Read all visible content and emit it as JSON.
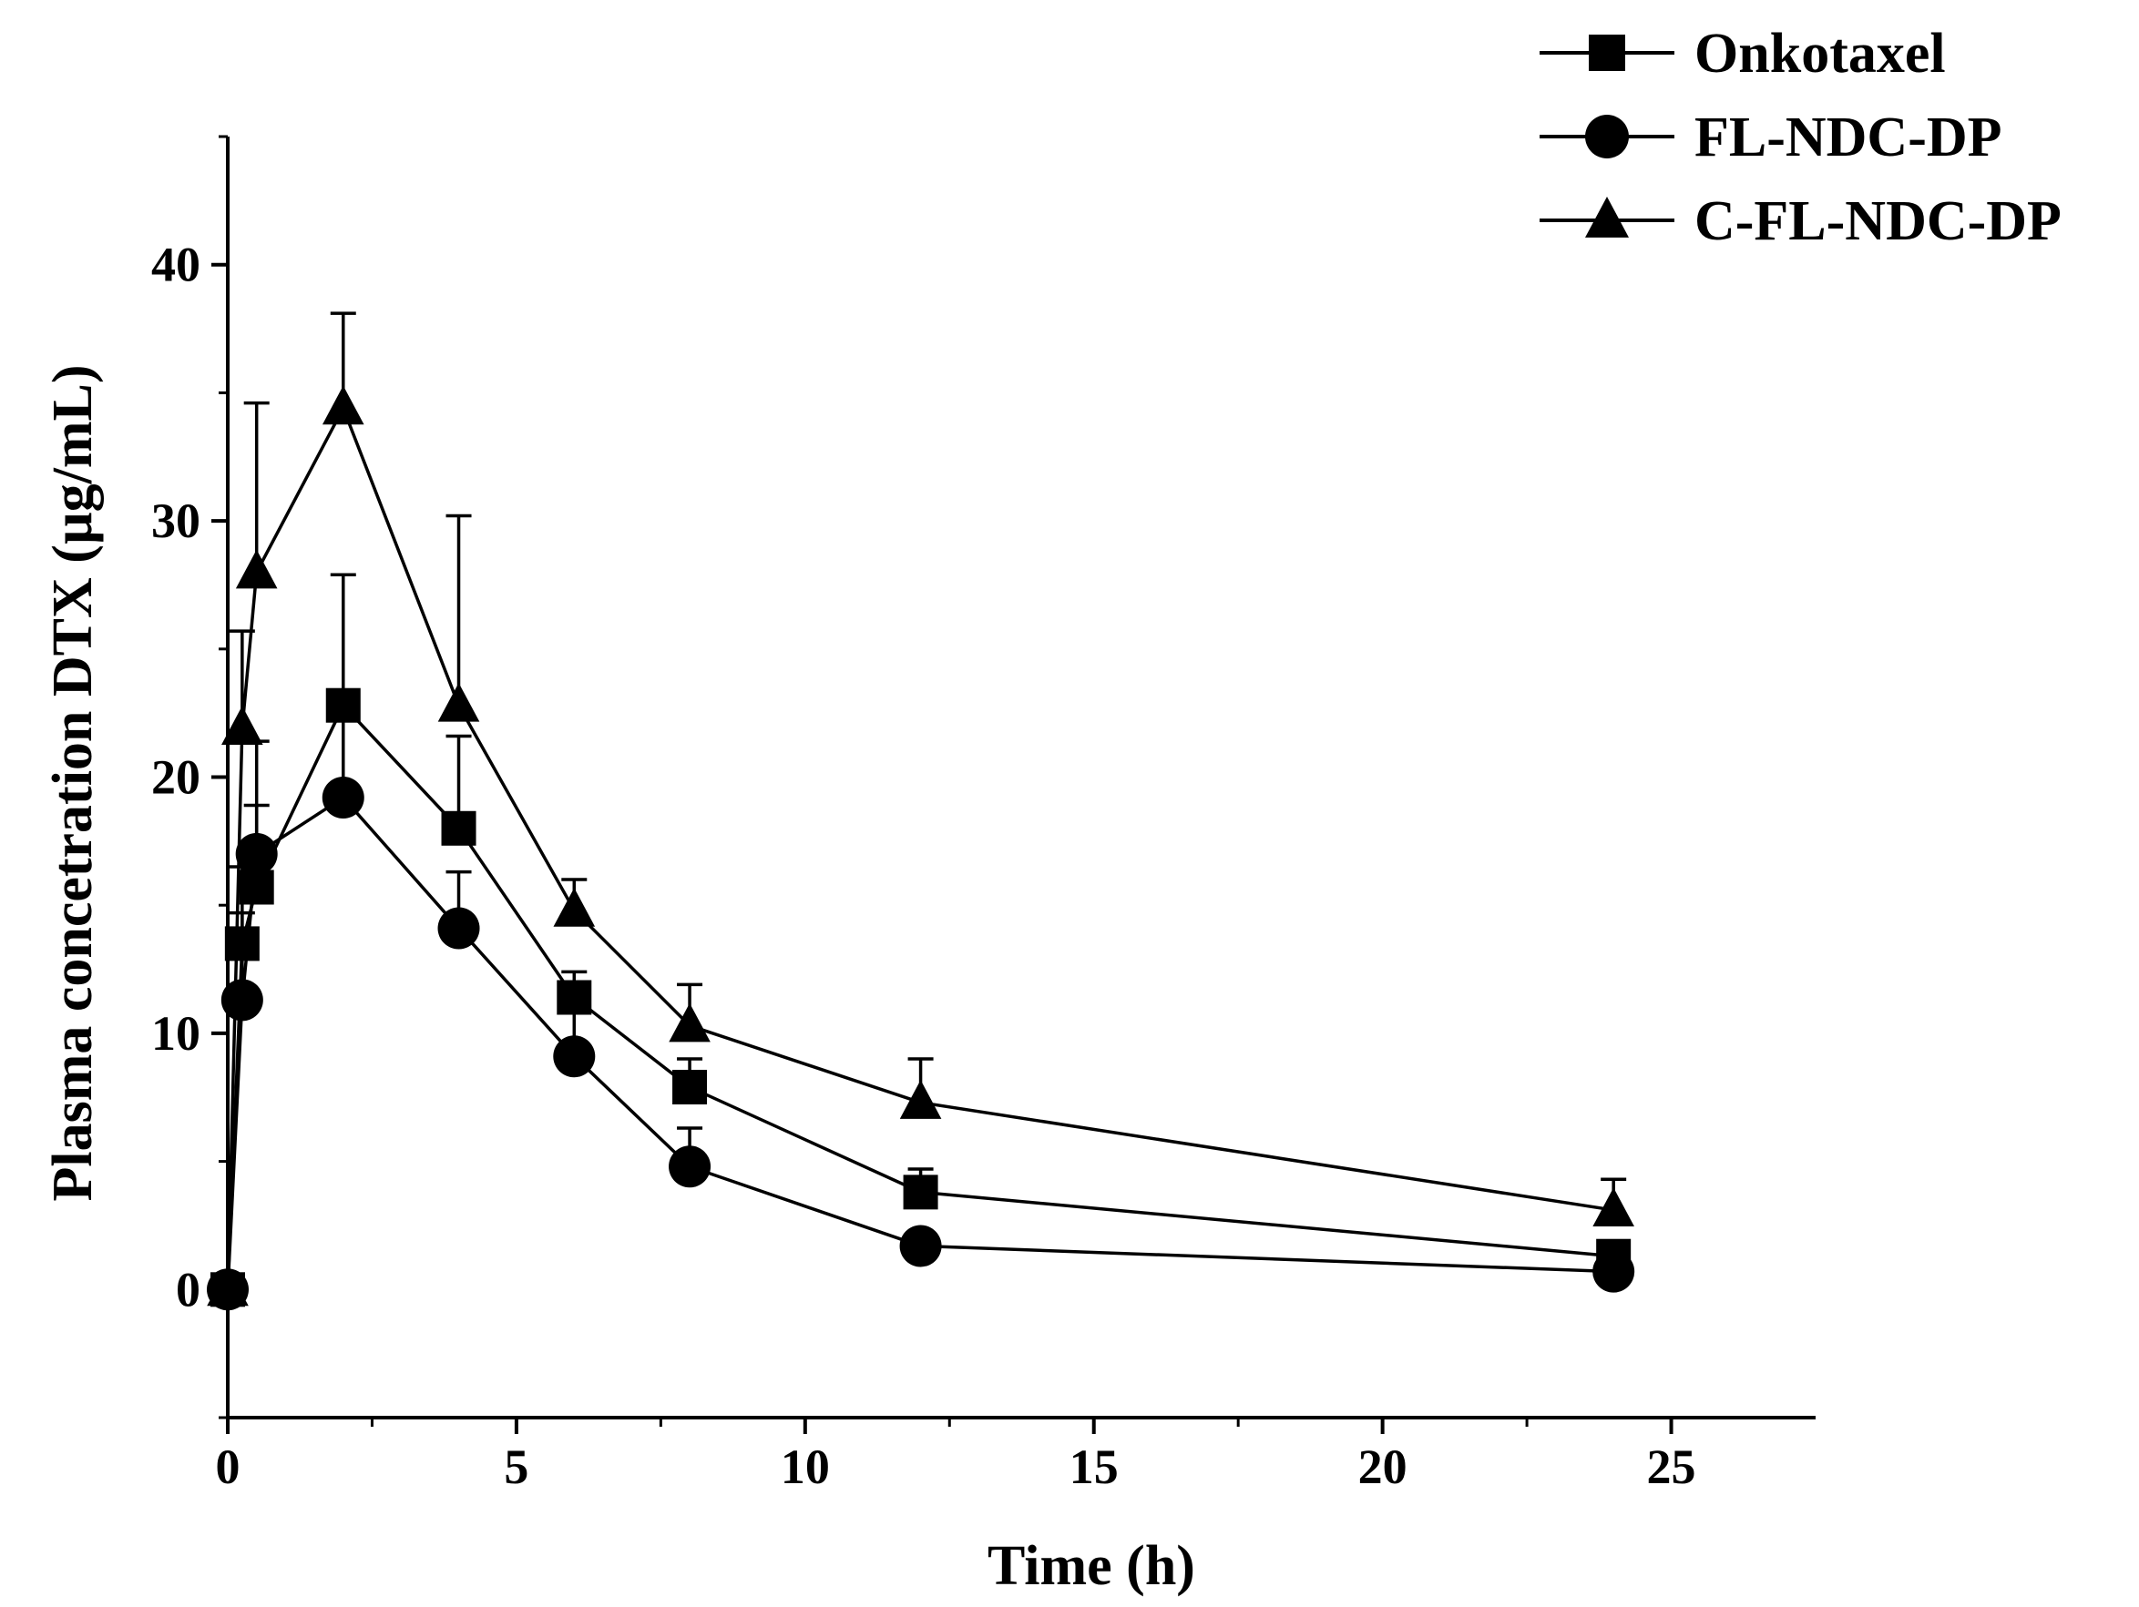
{
  "chart_data": {
    "type": "line",
    "xlabel": "Time (h)",
    "ylabel": "Plasma concetration DTX (µg/mL)",
    "xlim": [
      0,
      27.5
    ],
    "ylim": [
      -5,
      45
    ],
    "x_ticks": [
      0,
      5,
      10,
      15,
      20,
      25
    ],
    "y_ticks": [
      0,
      10,
      20,
      30,
      40
    ],
    "grid": false,
    "legend_position": "top-right",
    "series": [
      {
        "name": "Onkotaxel",
        "marker": "square",
        "color": "#000000",
        "x": [
          0,
          0.25,
          0.5,
          2,
          4,
          6,
          8,
          12,
          24
        ],
        "y": [
          0,
          13.5,
          15.7,
          22.8,
          18.0,
          11.4,
          7.9,
          3.8,
          1.3
        ],
        "error": [
          0,
          3.0,
          3.2,
          5.1,
          3.6,
          1.0,
          1.1,
          0.9,
          0.4
        ]
      },
      {
        "name": "FL-NDC-DP",
        "marker": "circle",
        "color": "#000000",
        "x": [
          0,
          0.25,
          0.5,
          2,
          4,
          6,
          8,
          12,
          24
        ],
        "y": [
          0,
          11.3,
          17.0,
          19.2,
          14.1,
          9.1,
          4.8,
          1.7,
          0.7
        ],
        "error": [
          0,
          3.4,
          4.4,
          3.1,
          2.2,
          2.7,
          1.5,
          0.2,
          0.2
        ]
      },
      {
        "name": "C-FL-NDC-DP",
        "marker": "triangle",
        "color": "#000000",
        "x": [
          0,
          0.25,
          0.5,
          2,
          4,
          6,
          8,
          12,
          24
        ],
        "y": [
          0,
          21.9,
          28.0,
          34.4,
          22.8,
          14.8,
          10.3,
          7.3,
          3.1
        ],
        "error": [
          0,
          3.8,
          6.6,
          3.7,
          7.4,
          1.2,
          1.6,
          1.7,
          1.2
        ]
      }
    ]
  }
}
